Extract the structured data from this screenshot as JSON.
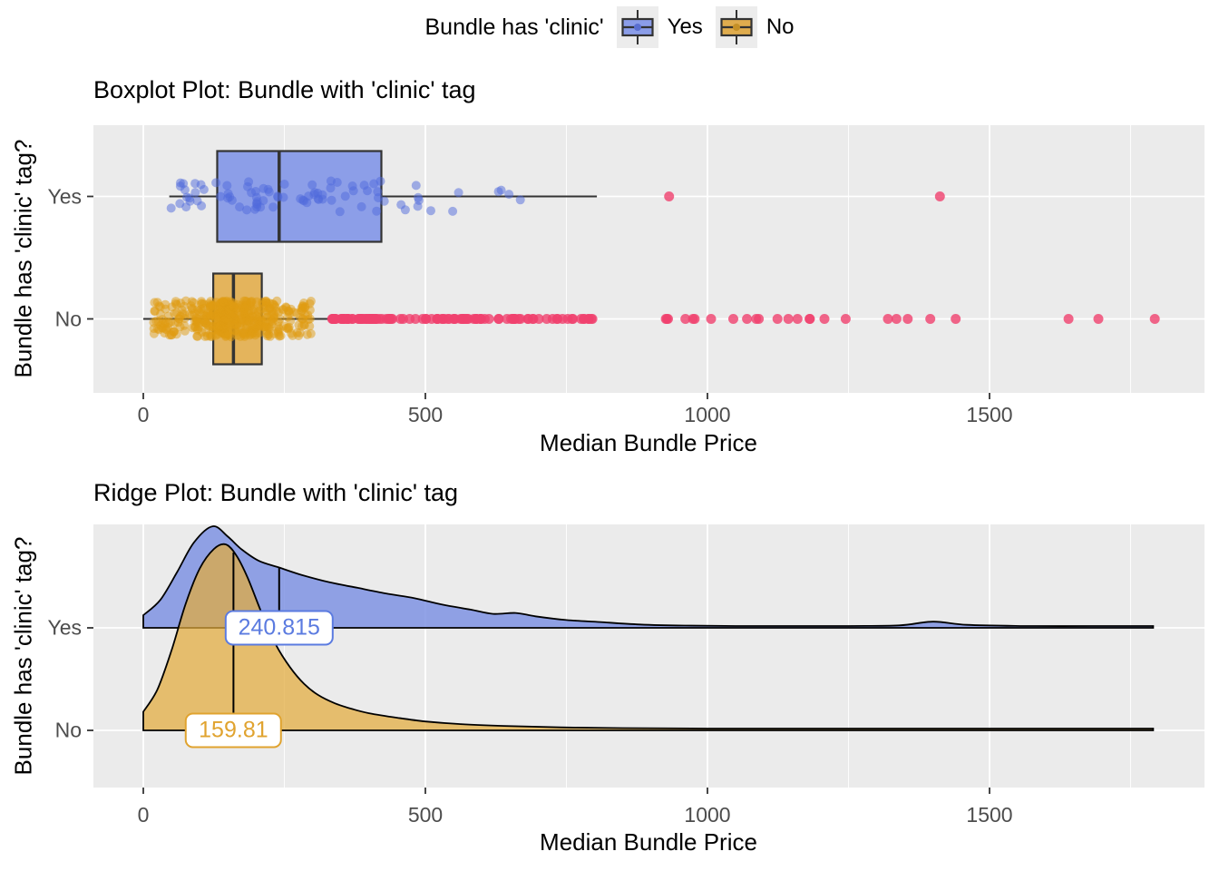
{
  "legend": {
    "title": "Bundle has 'clinic'",
    "items": [
      {
        "label": "Yes",
        "box_fill": "#8B9DE8",
        "dot_color": "#5A6FD0"
      },
      {
        "label": "No",
        "box_fill": "#DFAC4E",
        "dot_color": "#C59027"
      }
    ]
  },
  "colors": {
    "panel_bg": "#EBEBEB",
    "grid": "#FFFFFF",
    "axis_text": "#4D4D4D",
    "tick_mark": "#333333",
    "box_stroke": "#333333",
    "outlier": "rgba(240,65,110,0.8)",
    "blue_fill": "#8C9EE8",
    "gold_fill": "#E4B45C",
    "blue_point": "rgba(80,105,220,0.5)",
    "gold_point": "rgba(224,156,18,0.5)",
    "ridge_blue_fill": "rgba(122,143,226,0.82)",
    "ridge_gold_fill": "rgba(226,170,60,0.72)",
    "ridge_stroke": "#000000",
    "label_blue": "#5B7BE0",
    "label_gold": "#E0A32F"
  },
  "chart_data": [
    {
      "type": "boxplot",
      "title": "Boxplot Plot: Bundle with 'clinic' tag",
      "xlabel": "Median Bundle Price",
      "ylabel": "Bundle has 'clinic' tag?",
      "x_ticks": [
        0,
        500,
        1000,
        1500
      ],
      "x_minor_ticks": [
        250,
        750,
        1250,
        1750
      ],
      "x_range": [
        -88,
        1881
      ],
      "categories": [
        "Yes",
        "No"
      ],
      "series": [
        {
          "category": "Yes",
          "box": {
            "whisker_min": 46,
            "q1": 131,
            "median": 240.8,
            "q3": 422,
            "whisker_max": 804
          },
          "outliers": [
            932,
            1412
          ],
          "jitter": {
            "count": 88,
            "seed": 11,
            "y_spread": 17,
            "quantiles": [
              [
                0,
                46
              ],
              [
                0.1,
                85
              ],
              [
                0.25,
                128
              ],
              [
                0.45,
                215
              ],
              [
                0.5,
                240
              ],
              [
                0.75,
                420
              ],
              [
                0.9,
                520
              ],
              [
                1,
                672
              ]
            ]
          }
        },
        {
          "category": "No",
          "box": {
            "whisker_min": 0,
            "q1": 124,
            "median": 159.8,
            "q3": 210,
            "whisker_max": 331
          },
          "outliers_dense": {
            "count": 135,
            "seed": 23,
            "quantiles": [
              [
                0,
                333
              ],
              [
                0.35,
                450
              ],
              [
                0.65,
                600
              ],
              [
                0.85,
                800
              ],
              [
                1,
                1222
              ]
            ]
          },
          "outliers": [
            1245,
            1320,
            1335,
            1355,
            1395,
            1440,
            1640,
            1693,
            1793
          ],
          "jitter": {
            "count": 430,
            "seed": 5,
            "y_spread": 20,
            "quantiles": [
              [
                0,
                18
              ],
              [
                0.15,
                95
              ],
              [
                0.3,
                130
              ],
              [
                0.5,
                160
              ],
              [
                0.7,
                200
              ],
              [
                0.85,
                240
              ],
              [
                1,
                298
              ]
            ]
          }
        }
      ]
    },
    {
      "type": "ridge",
      "title": "Ridge Plot: Bundle with 'clinic' tag",
      "xlabel": "Median Bundle Price",
      "ylabel": "Bundle has 'clinic' tag?",
      "x_ticks": [
        0,
        500,
        1000,
        1500
      ],
      "x_minor_ticks": [
        250,
        750,
        1250,
        1750
      ],
      "x_range": [
        -88,
        1881
      ],
      "categories": [
        "Yes",
        "No"
      ],
      "ridges": [
        {
          "category": "Yes",
          "median": 240.815,
          "median_label": "240.815",
          "curve": [
            [
              0,
              0.068
            ],
            [
              30,
              0.15
            ],
            [
              60,
              0.3
            ],
            [
              90,
              0.46
            ],
            [
              123,
              0.546
            ],
            [
              150,
              0.49
            ],
            [
              175,
              0.42
            ],
            [
              205,
              0.36
            ],
            [
              240,
              0.325
            ],
            [
              280,
              0.285
            ],
            [
              330,
              0.245
            ],
            [
              380,
              0.215
            ],
            [
              430,
              0.185
            ],
            [
              480,
              0.16
            ],
            [
              530,
              0.125
            ],
            [
              580,
              0.098
            ],
            [
              620,
              0.075
            ],
            [
              660,
              0.08
            ],
            [
              695,
              0.062
            ],
            [
              750,
              0.042
            ],
            [
              810,
              0.031
            ],
            [
              880,
              0.018
            ],
            [
              960,
              0.012
            ],
            [
              1050,
              0.01
            ],
            [
              1150,
              0.01
            ],
            [
              1250,
              0.01
            ],
            [
              1340,
              0.013
            ],
            [
              1400,
              0.033
            ],
            [
              1460,
              0.016
            ],
            [
              1560,
              0.01
            ],
            [
              1680,
              0.01
            ],
            [
              1790,
              0.01
            ]
          ]
        },
        {
          "category": "No",
          "median": 159.81,
          "median_label": "159.81",
          "curve": [
            [
              0,
              0.1
            ],
            [
              25,
              0.22
            ],
            [
              50,
              0.43
            ],
            [
              75,
              0.68
            ],
            [
              100,
              0.87
            ],
            [
              125,
              0.975
            ],
            [
              146,
              1.0
            ],
            [
              165,
              0.94
            ],
            [
              185,
              0.82
            ],
            [
              210,
              0.63
            ],
            [
              235,
              0.46
            ],
            [
              260,
              0.34
            ],
            [
              285,
              0.25
            ],
            [
              310,
              0.19
            ],
            [
              340,
              0.145
            ],
            [
              370,
              0.115
            ],
            [
              400,
              0.092
            ],
            [
              450,
              0.068
            ],
            [
              500,
              0.048
            ],
            [
              560,
              0.034
            ],
            [
              640,
              0.024
            ],
            [
              740,
              0.016
            ],
            [
              850,
              0.012
            ],
            [
              1000,
              0.01
            ],
            [
              1200,
              0.01
            ],
            [
              1400,
              0.01
            ],
            [
              1600,
              0.01
            ],
            [
              1790,
              0.01
            ]
          ]
        }
      ]
    }
  ]
}
